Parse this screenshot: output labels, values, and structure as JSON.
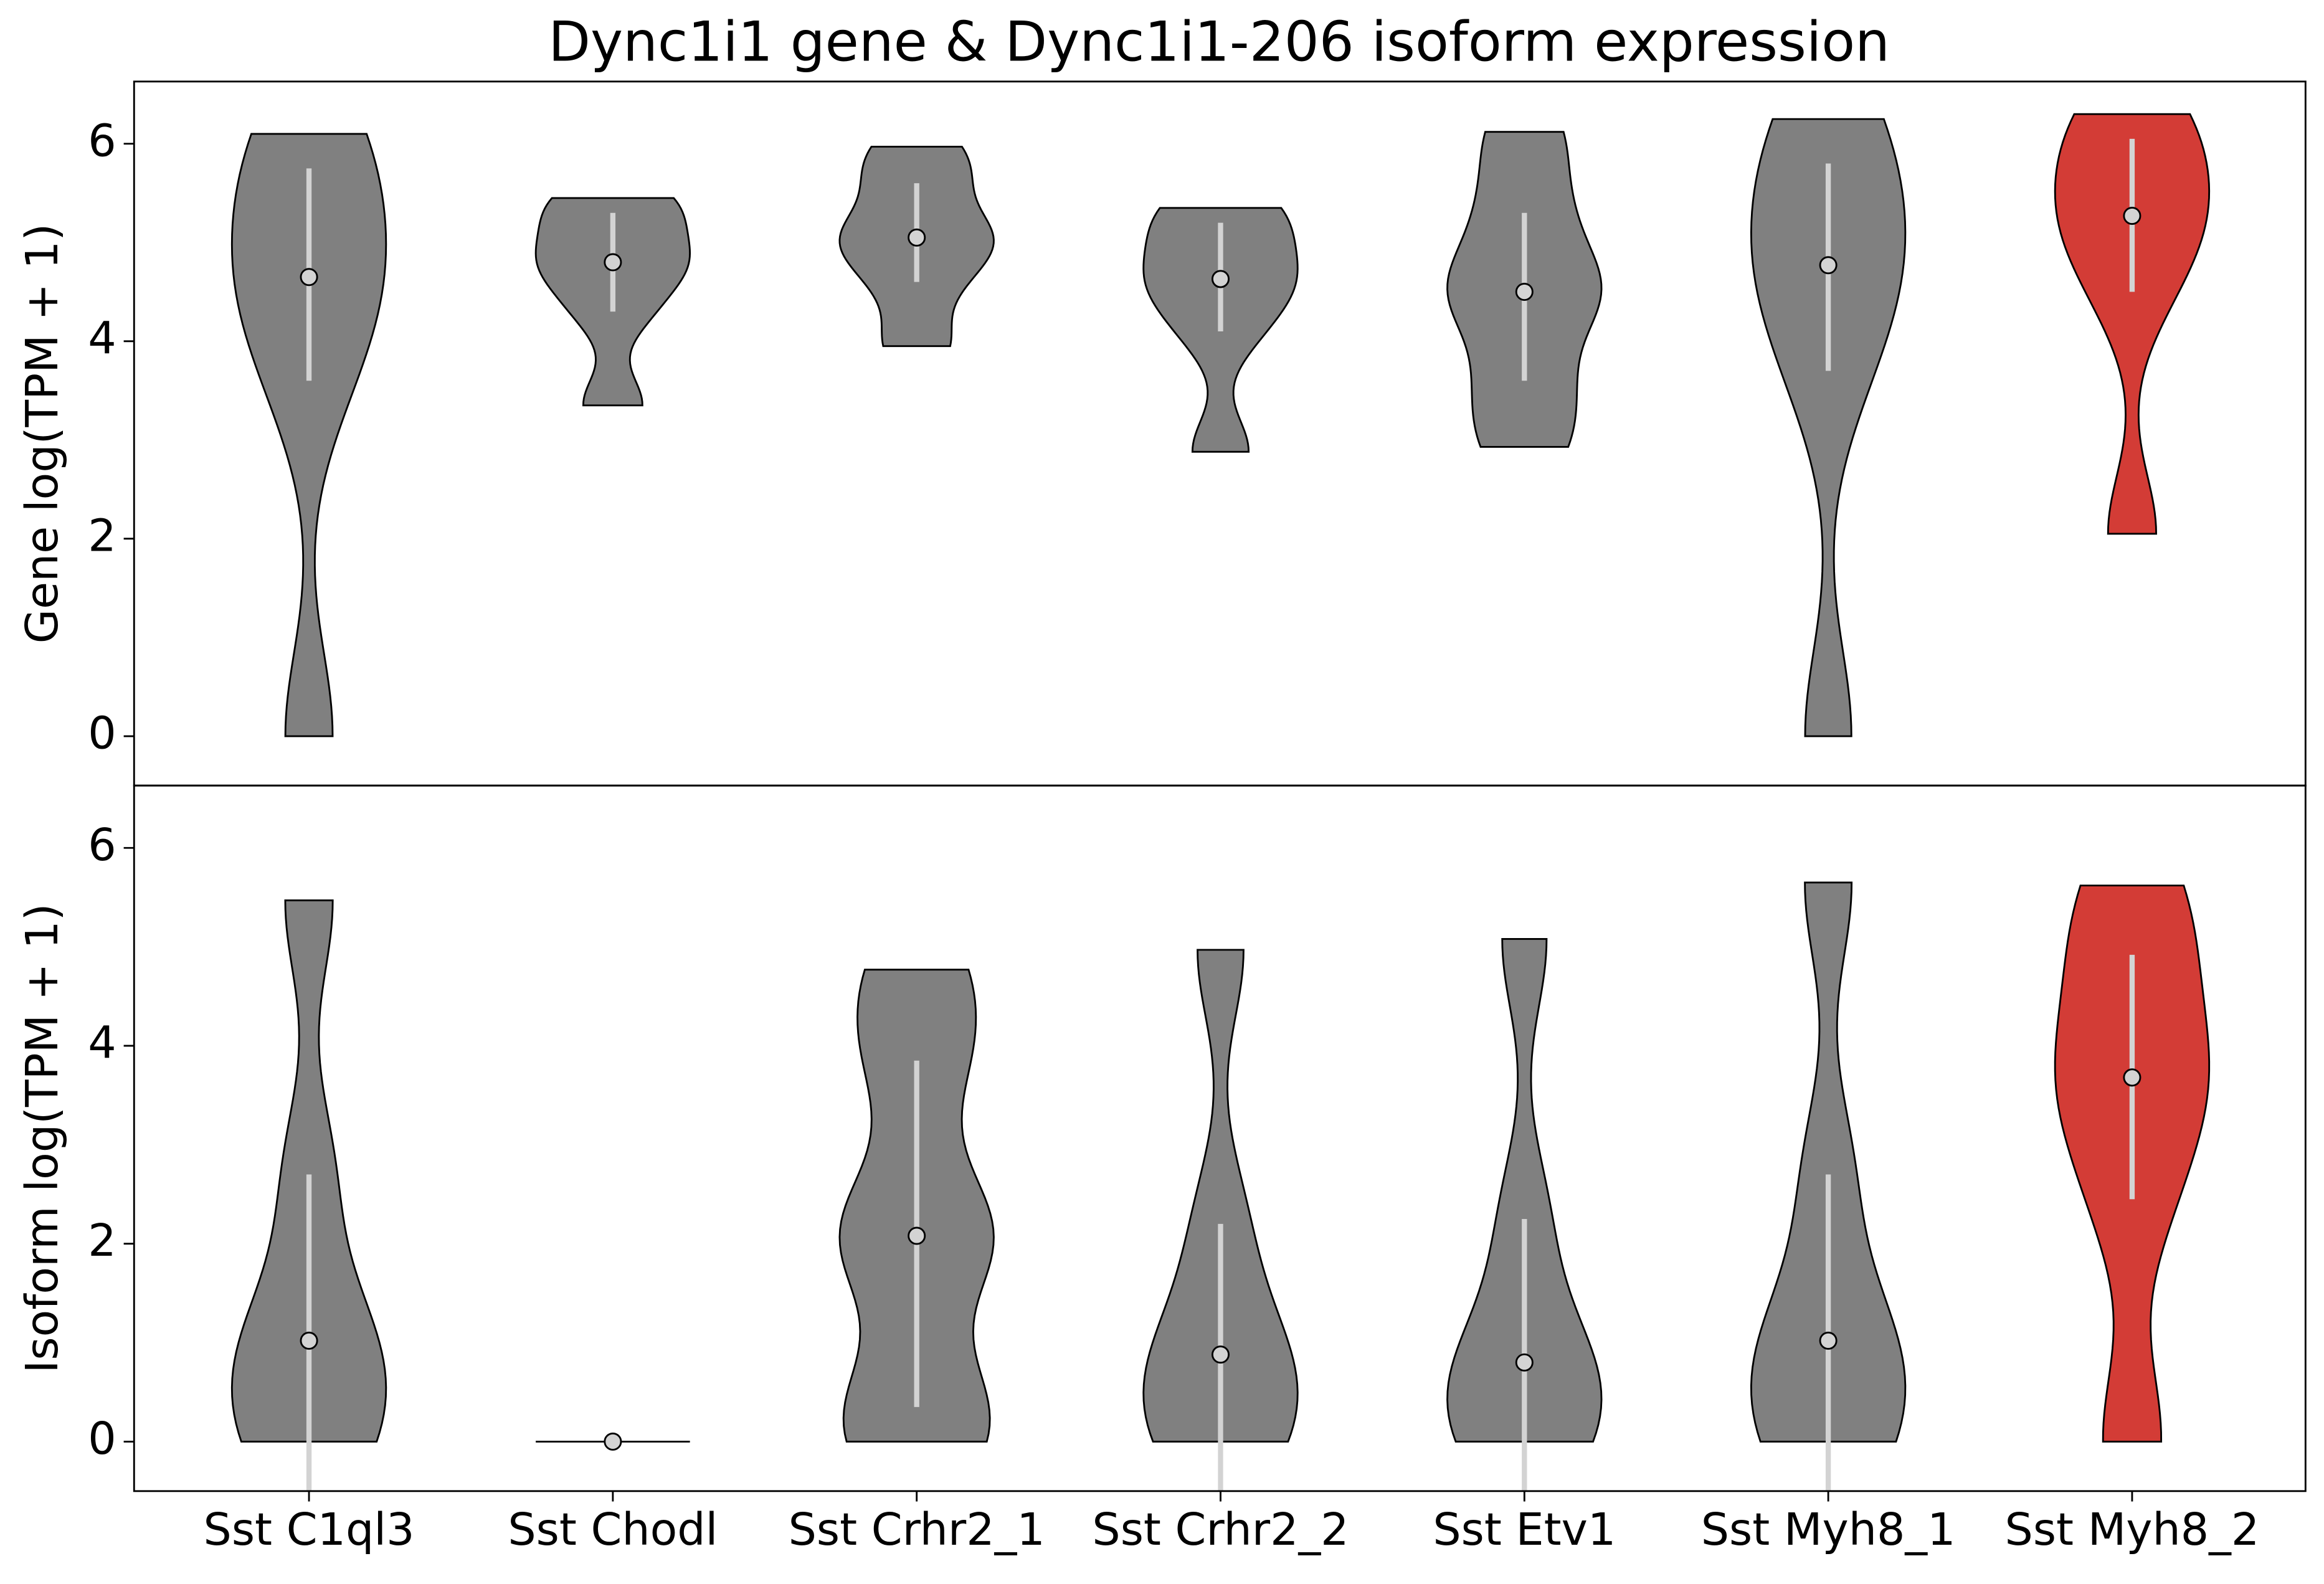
{
  "chart_data": [
    {
      "type": "violin",
      "title": "Dync1i1 gene & Dync1i1-206 isoform expression",
      "ylabel": "Gene log(TPM + 1)",
      "colors": [
        "#808080",
        "#808080",
        "#808080",
        "#808080",
        "#808080",
        "#808080",
        "#d33c36"
      ],
      "ylim": [
        -0.5,
        6.63
      ],
      "yticks": [
        0,
        2,
        4,
        6
      ],
      "stats": {
        "min": [
          0,
          3.35,
          3.95,
          2.88,
          2.93,
          0,
          2.05
        ],
        "low": [
          3.6,
          4.3,
          4.6,
          4.1,
          3.6,
          3.7,
          4.5
        ],
        "median": [
          4.65,
          4.8,
          5.05,
          4.63,
          4.5,
          4.77,
          5.27
        ],
        "high": [
          5.75,
          5.3,
          5.6,
          5.2,
          5.3,
          5.8,
          6.05
        ],
        "max": [
          6.1,
          5.45,
          5.97,
          5.35,
          6.12,
          6.25,
          6.3
        ]
      }
    },
    {
      "type": "violin",
      "ylabel": "Isoform log(TPM + 1)",
      "categories": [
        "Sst C1ql3",
        "Sst Chodl",
        "Sst Crhr2_1",
        "Sst Crhr2_2",
        "Sst Etv1",
        "Sst Myh8_1",
        "Sst Myh8_2"
      ],
      "colors": [
        "#808080",
        "#808080",
        "#808080",
        "#808080",
        "#808080",
        "#808080",
        "#d33c36"
      ],
      "ylim": [
        -0.5,
        6.63
      ],
      "yticks": [
        0,
        2,
        4,
        6
      ],
      "stats": {
        "min": [
          0,
          0,
          0,
          0,
          0,
          0,
          0
        ],
        "low": [
          -0.5,
          0,
          0.35,
          -0.5,
          -0.5,
          -0.5,
          2.45
        ],
        "median": [
          1.02,
          0,
          2.08,
          0.88,
          0.8,
          1.02,
          3.68
        ],
        "high": [
          2.7,
          0,
          3.85,
          2.2,
          2.25,
          2.7,
          4.92
        ],
        "max": [
          5.47,
          0,
          4.77,
          4.97,
          5.08,
          5.65,
          5.62
        ]
      }
    }
  ]
}
